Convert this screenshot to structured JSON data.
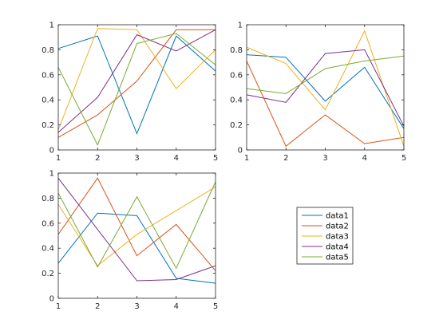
{
  "chart_data": {
    "type": "line",
    "legend": {
      "placement": "lower-right-empty-cell",
      "entries": [
        "data1",
        "data2",
        "data3",
        "data4",
        "data5"
      ]
    },
    "series_colors": {
      "data1": "#0072BD",
      "data2": "#D95319",
      "data3": "#EDB120",
      "data4": "#7E2F8E",
      "data5": "#77AC30"
    },
    "axis_color": "#262626",
    "subplots": [
      {
        "id": "subplot-1",
        "title": "",
        "xlabel": "",
        "ylabel": "",
        "xlim": [
          1,
          5
        ],
        "ylim": [
          0,
          1
        ],
        "grid": false,
        "xticks": [
          1,
          2,
          3,
          4,
          5
        ],
        "yticks": [
          0,
          0.2,
          0.4,
          0.6,
          0.8,
          1
        ],
        "xtick_labels": [
          "1",
          "2",
          "3",
          "4",
          "5"
        ],
        "ytick_labels": [
          "0",
          "0.2",
          "0.4",
          "0.6",
          "0.8",
          "1"
        ],
        "x": [
          1,
          2,
          3,
          4,
          5
        ],
        "series": [
          {
            "name": "data1",
            "values": [
              0.81,
              0.91,
              0.13,
              0.91,
              0.63
            ]
          },
          {
            "name": "data2",
            "values": [
              0.1,
              0.28,
              0.55,
              0.96,
              0.96
            ]
          },
          {
            "name": "data3",
            "values": [
              0.16,
              0.97,
              0.96,
              0.49,
              0.8
            ]
          },
          {
            "name": "data4",
            "values": [
              0.14,
              0.42,
              0.92,
              0.79,
              0.96
            ]
          },
          {
            "name": "data5",
            "values": [
              0.66,
              0.04,
              0.85,
              0.93,
              0.68
            ]
          }
        ]
      },
      {
        "id": "subplot-2",
        "title": "",
        "xlabel": "",
        "ylabel": "",
        "xlim": [
          1,
          5
        ],
        "ylim": [
          0,
          1
        ],
        "grid": false,
        "xticks": [
          1,
          2,
          3,
          4,
          5
        ],
        "yticks": [
          0,
          0.2,
          0.4,
          0.6,
          0.8,
          1
        ],
        "xtick_labels": [
          "1",
          "2",
          "3",
          "4",
          "5"
        ],
        "ytick_labels": [
          "0",
          "0.2",
          "0.4",
          "0.6",
          "0.8",
          "1"
        ],
        "x": [
          1,
          2,
          3,
          4,
          5
        ],
        "series": [
          {
            "name": "data1",
            "values": [
              0.76,
              0.74,
              0.39,
              0.66,
              0.17
            ]
          },
          {
            "name": "data2",
            "values": [
              0.71,
              0.03,
              0.28,
              0.05,
              0.1
            ]
          },
          {
            "name": "data3",
            "values": [
              0.82,
              0.69,
              0.32,
              0.95,
              0.03
            ]
          },
          {
            "name": "data4",
            "values": [
              0.44,
              0.38,
              0.77,
              0.8,
              0.19
            ]
          },
          {
            "name": "data5",
            "values": [
              0.49,
              0.45,
              0.65,
              0.71,
              0.75
            ]
          }
        ]
      },
      {
        "id": "subplot-3",
        "title": "",
        "xlabel": "",
        "ylabel": "",
        "xlim": [
          1,
          5
        ],
        "ylim": [
          0,
          1
        ],
        "grid": false,
        "xticks": [
          1,
          2,
          3,
          4,
          5
        ],
        "yticks": [
          0,
          0.2,
          0.4,
          0.6,
          0.8,
          1
        ],
        "xtick_labels": [
          "1",
          "2",
          "3",
          "4",
          "5"
        ],
        "ytick_labels": [
          "0",
          "0.2",
          "0.4",
          "0.6",
          "0.8",
          "1"
        ],
        "x": [
          1,
          2,
          3,
          4,
          5
        ],
        "series": [
          {
            "name": "data1",
            "values": [
              0.28,
              0.68,
              0.66,
              0.16,
              0.12
            ]
          },
          {
            "name": "data2",
            "values": [
              0.51,
              0.96,
              0.34,
              0.59,
              0.22
            ]
          },
          {
            "name": "data3",
            "values": [
              0.75,
              0.26,
              0.51,
              0.7,
              0.89
            ]
          },
          {
            "name": "data4",
            "values": [
              0.96,
              0.55,
              0.14,
              0.15,
              0.26
            ]
          },
          {
            "name": "data5",
            "values": [
              0.84,
              0.25,
              0.81,
              0.24,
              0.93
            ]
          }
        ]
      }
    ]
  }
}
